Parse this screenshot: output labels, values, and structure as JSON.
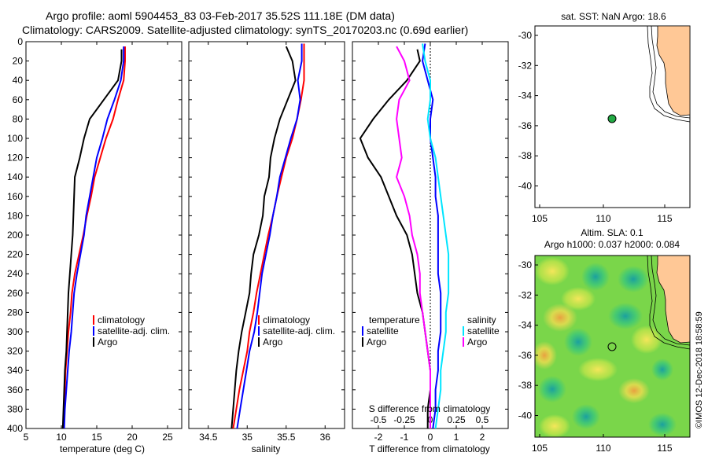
{
  "header": {
    "title_line1": "Argo profile: aoml 5904453_83 03-Feb-2017 35.52S 111.18E (DM data)",
    "title_line2": "Climatology: CARS2009. Satellite-adjusted climatology: synTS_20170203.nc (0.69d earlier)"
  },
  "colors": {
    "climatology": "#ff0000",
    "satellite": "#0000ff",
    "argo": "#000000",
    "sat_diff_s": "#00e5ff",
    "argo_diff_s": "#ff00ff",
    "land": "#ffc896",
    "ocean": "#ffffff"
  },
  "depth_axis": {
    "ticks": [
      0,
      20,
      40,
      60,
      80,
      100,
      120,
      140,
      160,
      180,
      200,
      220,
      240,
      260,
      280,
      300,
      320,
      340,
      360,
      380,
      400
    ]
  },
  "chart_data": [
    {
      "name": "temperature",
      "type": "line",
      "xlabel": "temperature (deg C)",
      "xlim": [
        5,
        27
      ],
      "xticks": [
        5,
        10,
        15,
        20,
        25
      ],
      "ylim": [
        400,
        0
      ],
      "series": [
        {
          "name": "climatology",
          "color": "#ff0000",
          "x": [
            19.0,
            19.0,
            18.8,
            18.0,
            17.3,
            16.3,
            15.5,
            14.7,
            14.2,
            13.6,
            13.1,
            12.5,
            11.9,
            11.5,
            11.3,
            11.0,
            10.8,
            10.6,
            10.5,
            10.4,
            10.3
          ],
          "y": [
            5,
            20,
            40,
            60,
            80,
            100,
            120,
            140,
            160,
            180,
            200,
            220,
            240,
            260,
            280,
            300,
            320,
            340,
            360,
            380,
            400
          ]
        },
        {
          "name": "satellite-adj. clim.",
          "color": "#0000ff",
          "x": [
            18.8,
            18.8,
            18.4,
            17.5,
            16.5,
            15.8,
            15.0,
            14.5,
            14.0,
            13.5,
            13.2,
            12.7,
            12.2,
            11.8,
            11.6,
            11.4,
            11.1,
            10.9,
            10.7,
            10.5,
            10.4
          ],
          "y": [
            5,
            20,
            40,
            60,
            80,
            100,
            120,
            140,
            160,
            180,
            200,
            220,
            240,
            260,
            280,
            300,
            320,
            340,
            360,
            380,
            400
          ]
        },
        {
          "name": "Argo",
          "color": "#000000",
          "x": [
            18.5,
            18.5,
            18.0,
            16.0,
            14.0,
            13.2,
            12.6,
            11.9,
            11.8,
            11.7,
            11.6,
            11.4,
            11.2,
            11.0,
            10.9,
            10.8,
            10.7,
            10.5,
            10.4,
            10.3,
            10.2
          ],
          "y": [
            8,
            20,
            40,
            60,
            80,
            100,
            120,
            140,
            160,
            180,
            200,
            220,
            240,
            260,
            280,
            300,
            320,
            340,
            360,
            380,
            400
          ]
        }
      ],
      "legend": [
        "climatology",
        "satellite-adj. clim.",
        "Argo"
      ]
    },
    {
      "name": "salinity",
      "type": "line",
      "xlabel": "salinity",
      "xlim": [
        34.25,
        36.25
      ],
      "xticks": [
        34.5,
        35,
        35.5,
        36
      ],
      "xticklabels": [
        "34.5",
        "35",
        "35.5",
        "36"
      ],
      "ylim": [
        400,
        0
      ],
      "series": [
        {
          "name": "climatology",
          "color": "#ff0000",
          "x": [
            35.73,
            35.73,
            35.73,
            35.69,
            35.64,
            35.58,
            35.5,
            35.44,
            35.38,
            35.33,
            35.27,
            35.22,
            35.17,
            35.12,
            35.08,
            35.03,
            35.0,
            34.95,
            34.9,
            34.86,
            34.82
          ],
          "y": [
            2,
            20,
            40,
            60,
            80,
            100,
            120,
            140,
            160,
            180,
            200,
            220,
            240,
            260,
            280,
            300,
            320,
            340,
            360,
            380,
            400
          ]
        },
        {
          "name": "satellite-adj. clim.",
          "color": "#0000ff",
          "x": [
            35.7,
            35.7,
            35.65,
            35.68,
            35.64,
            35.56,
            35.49,
            35.42,
            35.38,
            35.33,
            35.29,
            35.24,
            35.19,
            35.16,
            35.13,
            35.09,
            35.03,
            34.99,
            34.95,
            34.91,
            34.87
          ],
          "y": [
            2,
            20,
            40,
            60,
            80,
            100,
            120,
            140,
            160,
            180,
            200,
            220,
            240,
            260,
            280,
            300,
            320,
            340,
            360,
            380,
            400
          ]
        },
        {
          "name": "Argo",
          "color": "#000000",
          "x": [
            35.5,
            35.58,
            35.62,
            35.52,
            35.42,
            35.35,
            35.3,
            35.28,
            35.22,
            35.2,
            35.15,
            35.08,
            35.05,
            35.03,
            34.98,
            34.93,
            34.89,
            34.86,
            34.84,
            34.82,
            34.8
          ],
          "y": [
            5,
            20,
            40,
            60,
            80,
            100,
            120,
            140,
            160,
            180,
            200,
            220,
            240,
            260,
            280,
            300,
            320,
            340,
            360,
            380,
            400
          ]
        }
      ],
      "legend": [
        "climatology",
        "satellite-adj. clim.",
        "Argo"
      ]
    },
    {
      "name": "differences",
      "type": "line",
      "xlabel": "T difference from climatology",
      "xlim": [
        -3,
        3
      ],
      "xticks": [
        -2,
        -1,
        0,
        1,
        2
      ],
      "ylim": [
        400,
        0
      ],
      "top_label": "S difference from climatology",
      "top_ticks": [
        -0.5,
        -0.25,
        0,
        0.25,
        0.5
      ],
      "top_ticklabels": [
        "-0.5",
        "-0.25",
        "0",
        "0.25",
        "0.5"
      ],
      "series": [
        {
          "name": "satellite T",
          "color": "#0000ff",
          "x": [
            -0.2,
            -0.3,
            -0.1,
            0.1,
            0.0,
            0.0,
            0.1,
            0.2,
            0.2,
            0.3,
            0.3,
            0.3,
            0.3,
            0.4,
            0.4,
            0.4,
            0.3,
            0.3,
            0.2,
            0.2,
            0.1
          ],
          "y": [
            2,
            20,
            40,
            60,
            80,
            100,
            120,
            140,
            160,
            180,
            200,
            220,
            240,
            260,
            280,
            300,
            320,
            340,
            360,
            380,
            400
          ]
        },
        {
          "name": "Argo T",
          "color": "#000000",
          "x": [
            -0.5,
            -0.4,
            -0.9,
            -1.6,
            -2.2,
            -2.7,
            -2.4,
            -1.9,
            -1.6,
            -1.3,
            -0.9,
            -0.7,
            -0.6,
            -0.5,
            -0.3,
            -0.2,
            -0.1,
            0.0,
            0.0,
            -0.1,
            -0.1
          ],
          "y": [
            8,
            20,
            40,
            60,
            80,
            100,
            120,
            140,
            160,
            180,
            200,
            220,
            240,
            260,
            280,
            300,
            320,
            340,
            360,
            380,
            400
          ]
        },
        {
          "name": "satellite S",
          "color": "#00e5ff",
          "x": [
            -0.3,
            -0.2,
            0.0,
            0.0,
            -0.1,
            0.0,
            0.2,
            0.3,
            0.4,
            0.5,
            0.6,
            0.7,
            0.7,
            0.7,
            0.6,
            0.6,
            0.5,
            0.4,
            0.4,
            0.3,
            0.2
          ],
          "y": [
            2,
            20,
            40,
            60,
            80,
            100,
            120,
            140,
            160,
            180,
            200,
            220,
            240,
            260,
            280,
            300,
            320,
            340,
            360,
            380,
            400
          ]
        },
        {
          "name": "Argo S",
          "color": "#ff00ff",
          "x": [
            -1.3,
            -1.0,
            -0.8,
            -1.2,
            -1.3,
            -1.2,
            -1.1,
            -1.3,
            -1.0,
            -0.8,
            -0.7,
            -0.5,
            -0.4,
            -0.4,
            -0.3,
            -0.2,
            -0.1,
            0.0,
            0.0,
            0.0,
            0.0
          ],
          "y": [
            5,
            20,
            40,
            60,
            80,
            100,
            120,
            140,
            160,
            180,
            200,
            220,
            240,
            260,
            280,
            300,
            320,
            340,
            360,
            380,
            400
          ]
        }
      ],
      "legend_temperature": {
        "title": "temperature",
        "items": [
          "satellite",
          "Argo"
        ]
      },
      "legend_salinity": {
        "title": "salinity",
        "items": [
          "satellite",
          "Argo"
        ]
      }
    }
  ],
  "maps": {
    "sst": {
      "title": "sat. SST: NaN Argo: 18.6",
      "xticks": [
        "105",
        "110",
        "115"
      ],
      "yticks": [
        "-30",
        "-32",
        "-34",
        "-36",
        "-38",
        "-40"
      ],
      "argo_lon": 111.18,
      "argo_lat": -35.52
    },
    "sla": {
      "title_line1": "Altim. SLA: 0.1",
      "title_line2": "Argo h1000: 0.037 h2000: 0.084",
      "xticks": [
        "105",
        "110",
        "115"
      ],
      "yticks": [
        "-30",
        "-32",
        "-34",
        "-36",
        "-38",
        "-40"
      ],
      "argo_lon": 111.18,
      "argo_lat": -35.52
    }
  },
  "footer": {
    "credit": "©IMOS 12-Dec-2018 18:58:59"
  }
}
